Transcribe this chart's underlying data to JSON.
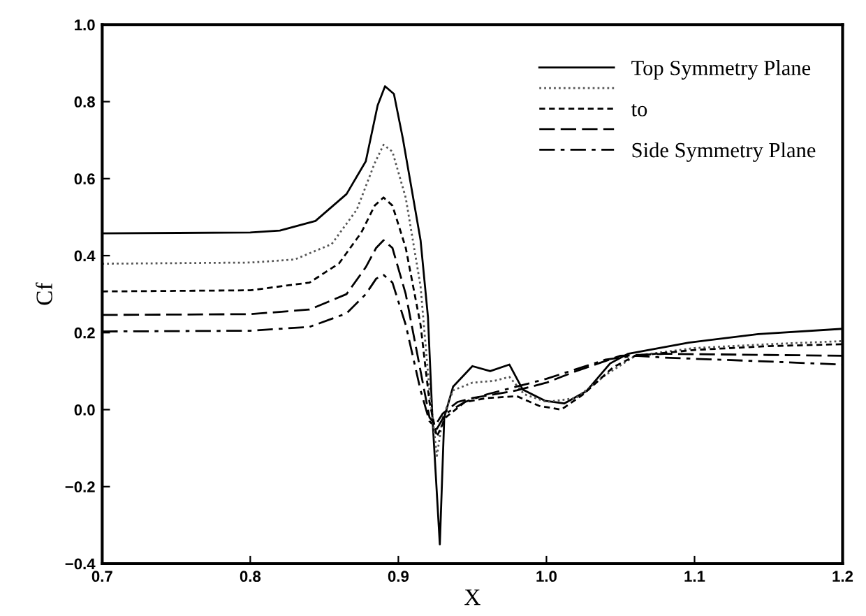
{
  "chart_data": {
    "type": "line",
    "xlabel": "X",
    "ylabel": "Cf",
    "xlim": [
      0.7,
      1.2
    ],
    "ylim": [
      -0.4,
      1.0
    ],
    "xticks": [
      {
        "value": 0.7,
        "label": "0.7"
      },
      {
        "value": 0.8,
        "label": "0.8"
      },
      {
        "value": 0.9,
        "label": "0.9"
      },
      {
        "value": 1.0,
        "label": "1.0"
      },
      {
        "value": 1.1,
        "label": "1.1"
      },
      {
        "value": 1.2,
        "label": "1.2"
      }
    ],
    "yticks": [
      {
        "value": -0.4,
        "label": "−0.4"
      },
      {
        "value": -0.2,
        "label": "−0.2"
      },
      {
        "value": 0.0,
        "label": "0.0"
      },
      {
        "value": 0.2,
        "label": "0.2"
      },
      {
        "value": 0.4,
        "label": "0.4"
      },
      {
        "value": 0.6,
        "label": "0.6"
      },
      {
        "value": 0.8,
        "label": "0.8"
      },
      {
        "value": 1.0,
        "label": "1.0"
      }
    ],
    "grid": false,
    "legend": "top right",
    "marker": "none",
    "series": [
      {
        "name": "Top Symmetry Plane",
        "color": "#000000",
        "line_style": "solid",
        "x": [
          0.7,
          0.8,
          0.82,
          0.844,
          0.865,
          0.878,
          0.886,
          0.891,
          0.897,
          0.903,
          0.915,
          0.92,
          0.923,
          0.928,
          0.931,
          0.937,
          0.95,
          0.962,
          0.975,
          0.984,
          0.999,
          1.012,
          1.027,
          1.043,
          1.055,
          1.096,
          1.143,
          1.2
        ],
        "values": [
          0.458,
          0.46,
          0.465,
          0.49,
          0.56,
          0.645,
          0.79,
          0.84,
          0.82,
          0.705,
          0.44,
          0.24,
          -0.02,
          -0.35,
          -0.02,
          0.06,
          0.113,
          0.1,
          0.117,
          0.052,
          0.023,
          0.016,
          0.048,
          0.12,
          0.145,
          0.174,
          0.196,
          0.21
        ]
      },
      {
        "color": "#555555",
        "line_style": "dotted",
        "x": [
          0.7,
          0.8,
          0.83,
          0.855,
          0.872,
          0.884,
          0.89,
          0.896,
          0.905,
          0.915,
          0.921,
          0.926,
          0.93,
          0.937,
          0.95,
          0.965,
          0.975,
          0.985,
          1.0,
          1.02,
          1.04,
          1.06,
          1.1,
          1.15,
          1.2
        ],
        "values": [
          0.379,
          0.382,
          0.39,
          0.43,
          0.52,
          0.64,
          0.688,
          0.67,
          0.55,
          0.32,
          0.05,
          -0.12,
          -0.02,
          0.05,
          0.07,
          0.075,
          0.085,
          0.04,
          0.02,
          0.03,
          0.09,
          0.14,
          0.16,
          0.17,
          0.178
        ]
      },
      {
        "name": "to",
        "color": "#000000",
        "line_style": "dashed",
        "x": [
          0.7,
          0.8,
          0.84,
          0.86,
          0.875,
          0.884,
          0.89,
          0.896,
          0.905,
          0.915,
          0.921,
          0.926,
          0.932,
          0.945,
          0.96,
          0.98,
          0.995,
          1.01,
          1.025,
          1.045,
          1.06,
          1.1,
          1.15,
          1.2
        ],
        "values": [
          0.307,
          0.31,
          0.33,
          0.38,
          0.46,
          0.53,
          0.551,
          0.53,
          0.42,
          0.22,
          0.02,
          -0.07,
          -0.02,
          0.02,
          0.03,
          0.035,
          0.01,
          0.0,
          0.04,
          0.11,
          0.14,
          0.155,
          0.165,
          0.17
        ]
      },
      {
        "color": "#000000",
        "line_style": "longdash",
        "x": [
          0.7,
          0.8,
          0.84,
          0.865,
          0.878,
          0.885,
          0.89,
          0.896,
          0.905,
          0.915,
          0.921,
          0.925,
          0.93,
          0.94,
          0.95,
          0.98,
          1.0,
          1.02,
          1.05,
          1.08,
          1.15,
          1.2
        ],
        "values": [
          0.246,
          0.248,
          0.26,
          0.3,
          0.37,
          0.42,
          0.44,
          0.42,
          0.3,
          0.1,
          -0.02,
          -0.04,
          -0.01,
          0.02,
          0.03,
          0.05,
          0.07,
          0.1,
          0.14,
          0.145,
          0.142,
          0.14
        ]
      },
      {
        "name": "Side Symmetry Plane",
        "color": "#000000",
        "line_style": "dashdot",
        "x": [
          0.7,
          0.8,
          0.84,
          0.865,
          0.878,
          0.885,
          0.89,
          0.896,
          0.905,
          0.915,
          0.921,
          0.926,
          0.932,
          0.945,
          0.96,
          0.98,
          1.0,
          1.02,
          1.04,
          1.06,
          1.08,
          1.15,
          1.2
        ],
        "values": [
          0.203,
          0.205,
          0.215,
          0.25,
          0.3,
          0.34,
          0.35,
          0.33,
          0.22,
          0.05,
          -0.03,
          -0.05,
          -0.01,
          0.02,
          0.04,
          0.06,
          0.08,
          0.105,
          0.13,
          0.14,
          0.135,
          0.125,
          0.117
        ]
      }
    ]
  }
}
